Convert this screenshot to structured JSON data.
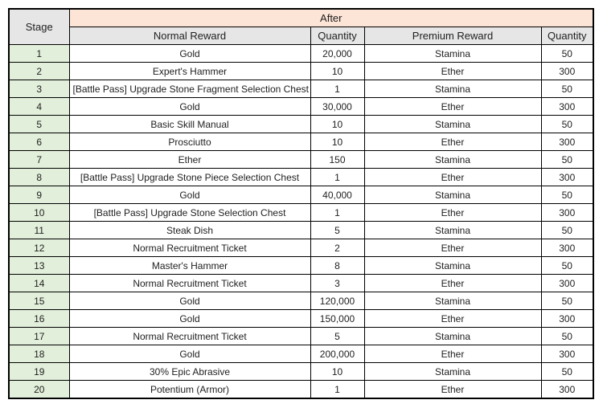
{
  "colors": {
    "after_header_bg": "#FCE4D6",
    "subheader_bg": "#E7E6E6",
    "stage_cell_bg": "#E2EFDA",
    "border": "#000000",
    "text": "#1F1F1F",
    "row_bg": "#FFFFFF"
  },
  "table": {
    "stage_header": "Stage",
    "group_header": "After",
    "columns": [
      "Normal Reward",
      "Quantity",
      "Premium Reward",
      "Quantity"
    ],
    "rows": [
      {
        "stage": "1",
        "normal_reward": "Gold",
        "normal_qty": "20,000",
        "premium_reward": "Stamina",
        "premium_qty": "50"
      },
      {
        "stage": "2",
        "normal_reward": "Expert's Hammer",
        "normal_qty": "10",
        "premium_reward": "Ether",
        "premium_qty": "300"
      },
      {
        "stage": "3",
        "normal_reward": "[Battle Pass] Upgrade Stone Fragment Selection Chest",
        "normal_qty": "1",
        "premium_reward": "Stamina",
        "premium_qty": "50"
      },
      {
        "stage": "4",
        "normal_reward": "Gold",
        "normal_qty": "30,000",
        "premium_reward": "Ether",
        "premium_qty": "300"
      },
      {
        "stage": "5",
        "normal_reward": "Basic Skill Manual",
        "normal_qty": "10",
        "premium_reward": "Stamina",
        "premium_qty": "50"
      },
      {
        "stage": "6",
        "normal_reward": "Prosciutto",
        "normal_qty": "10",
        "premium_reward": "Ether",
        "premium_qty": "300"
      },
      {
        "stage": "7",
        "normal_reward": "Ether",
        "normal_qty": "150",
        "premium_reward": "Stamina",
        "premium_qty": "50"
      },
      {
        "stage": "8",
        "normal_reward": "[Battle Pass] Upgrade Stone Piece Selection Chest",
        "normal_qty": "1",
        "premium_reward": "Ether",
        "premium_qty": "300"
      },
      {
        "stage": "9",
        "normal_reward": "Gold",
        "normal_qty": "40,000",
        "premium_reward": "Stamina",
        "premium_qty": "50"
      },
      {
        "stage": "10",
        "normal_reward": "[Battle Pass] Upgrade Stone Selection Chest",
        "normal_qty": "1",
        "premium_reward": "Ether",
        "premium_qty": "300"
      },
      {
        "stage": "11",
        "normal_reward": "Steak Dish",
        "normal_qty": "5",
        "premium_reward": "Stamina",
        "premium_qty": "50"
      },
      {
        "stage": "12",
        "normal_reward": "Normal Recruitment Ticket",
        "normal_qty": "2",
        "premium_reward": "Ether",
        "premium_qty": "300"
      },
      {
        "stage": "13",
        "normal_reward": "Master's Hammer",
        "normal_qty": "8",
        "premium_reward": "Stamina",
        "premium_qty": "50"
      },
      {
        "stage": "14",
        "normal_reward": "Normal Recruitment Ticket",
        "normal_qty": "3",
        "premium_reward": "Ether",
        "premium_qty": "300"
      },
      {
        "stage": "15",
        "normal_reward": "Gold",
        "normal_qty": "120,000",
        "premium_reward": "Stamina",
        "premium_qty": "50"
      },
      {
        "stage": "16",
        "normal_reward": "Gold",
        "normal_qty": "150,000",
        "premium_reward": "Ether",
        "premium_qty": "300"
      },
      {
        "stage": "17",
        "normal_reward": "Normal Recruitment Ticket",
        "normal_qty": "5",
        "premium_reward": "Stamina",
        "premium_qty": "50"
      },
      {
        "stage": "18",
        "normal_reward": "Gold",
        "normal_qty": "200,000",
        "premium_reward": "Ether",
        "premium_qty": "300"
      },
      {
        "stage": "19",
        "normal_reward": "30% Epic Abrasive",
        "normal_qty": "10",
        "premium_reward": "Stamina",
        "premium_qty": "50"
      },
      {
        "stage": "20",
        "normal_reward": "Potentium (Armor)",
        "normal_qty": "1",
        "premium_reward": "Ether",
        "premium_qty": "300"
      }
    ]
  }
}
